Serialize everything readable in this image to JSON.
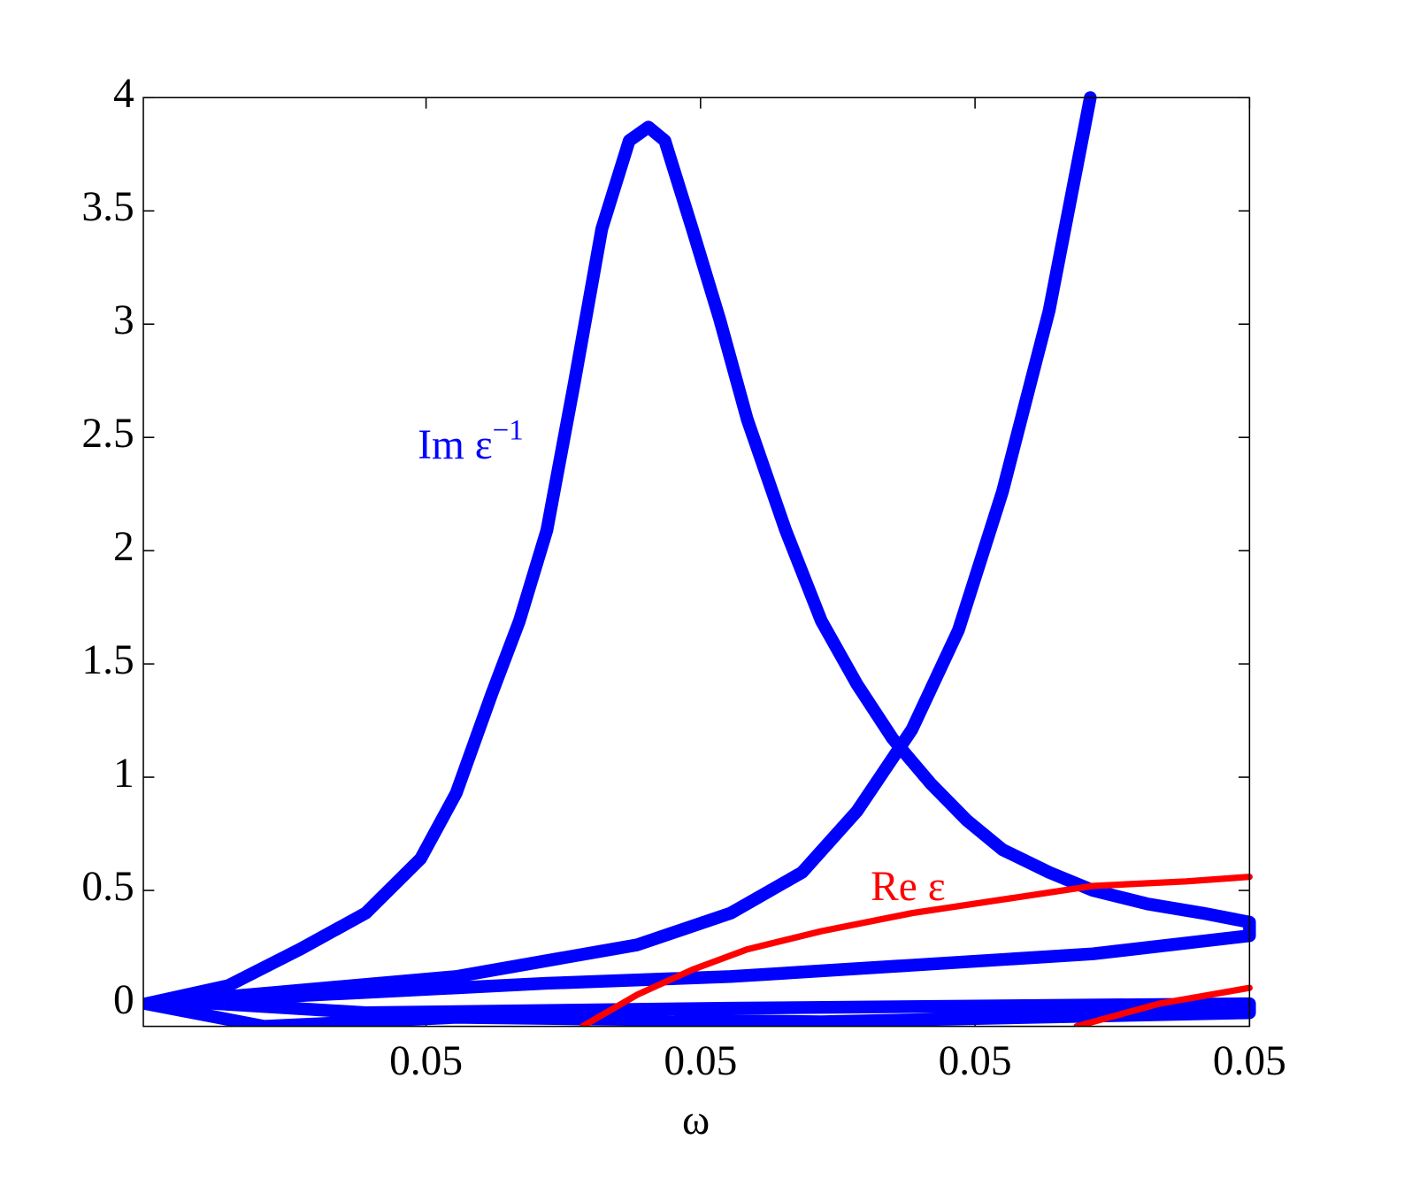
{
  "chart_data": {
    "type": "line",
    "xlabel": "ω",
    "xlim": [
      0.04597,
      0.05
    ],
    "ylim": [
      -0.1,
      4
    ],
    "xticks": [
      {
        "value": 0.047,
        "label": "0.05"
      },
      {
        "value": 0.048,
        "label": "0.05"
      },
      {
        "value": 0.049,
        "label": "0.05"
      },
      {
        "value": 0.05,
        "label": "0.05"
      }
    ],
    "yticks": [
      0,
      0.5,
      1,
      1.5,
      2,
      2.5,
      3,
      3.5,
      4
    ],
    "series": [
      {
        "color": "#0000ff",
        "marker": "o",
        "x": [
          0.04598,
          0.04628,
          0.04654,
          0.04678,
          0.04698,
          0.04711,
          0.04724,
          0.04734,
          0.04744,
          0.04754,
          0.04764,
          0.04774,
          0.04781,
          0.04787,
          0.04797,
          0.04807,
          0.04817,
          0.04831,
          0.04844,
          0.04857,
          0.0487,
          0.04884,
          0.04897,
          0.0491,
          0.04927,
          0.04943,
          0.04963,
          0.04983,
          0.05,
          0.05,
          0.04943,
          0.04877,
          0.04811,
          0.04744,
          0.04678,
          0.04611,
          0.04678,
          0.04811,
          0.05,
          0.05,
          0.04844,
          0.04711,
          0.04641,
          0.04598,
          0.04645,
          0.04711,
          0.04777,
          0.04811,
          0.04837,
          0.04857,
          0.04877,
          0.04894,
          0.0491,
          0.04927,
          0.04942
        ],
        "values": [
          0,
          0.08,
          0.24,
          0.4,
          0.64,
          0.93,
          1.37,
          1.69,
          2.09,
          2.74,
          3.42,
          3.81,
          3.87,
          3.81,
          3.42,
          3.02,
          2.58,
          2.09,
          1.69,
          1.41,
          1.17,
          0.97,
          0.81,
          0.68,
          0.58,
          0.5,
          0.44,
          0.4,
          0.36,
          0.3,
          0.22,
          0.17,
          0.12,
          0.09,
          0.05,
          0.01,
          -0.04,
          -0.02,
          0,
          -0.04,
          -0.08,
          -0.06,
          -0.1,
          0,
          0.05,
          0.12,
          0.26,
          0.4,
          0.58,
          0.85,
          1.21,
          1.65,
          2.26,
          3.06,
          4
        ]
      },
      {
        "color": "#ff0000",
        "marker": "+",
        "x": [
          0.04757,
          0.04777,
          0.04797,
          0.04817,
          0.04844,
          0.04877,
          0.0491,
          0.04943,
          0.04977,
          0.05,
          null,
          0.04937,
          0.04967,
          0.05
        ],
        "values": [
          -0.1,
          0.04,
          0.15,
          0.24,
          0.32,
          0.4,
          0.46,
          0.52,
          0.54,
          0.56,
          null,
          -0.1,
          0,
          0.07
        ]
      }
    ],
    "annotations": [
      {
        "text": "Im ε",
        "superscript": "−1",
        "color": "#0000ff",
        "x": 0.04697,
        "y": 2.45
      },
      {
        "text": "Re ε",
        "color": "#ff0000",
        "x": 0.04862,
        "y": 0.5
      }
    ]
  }
}
